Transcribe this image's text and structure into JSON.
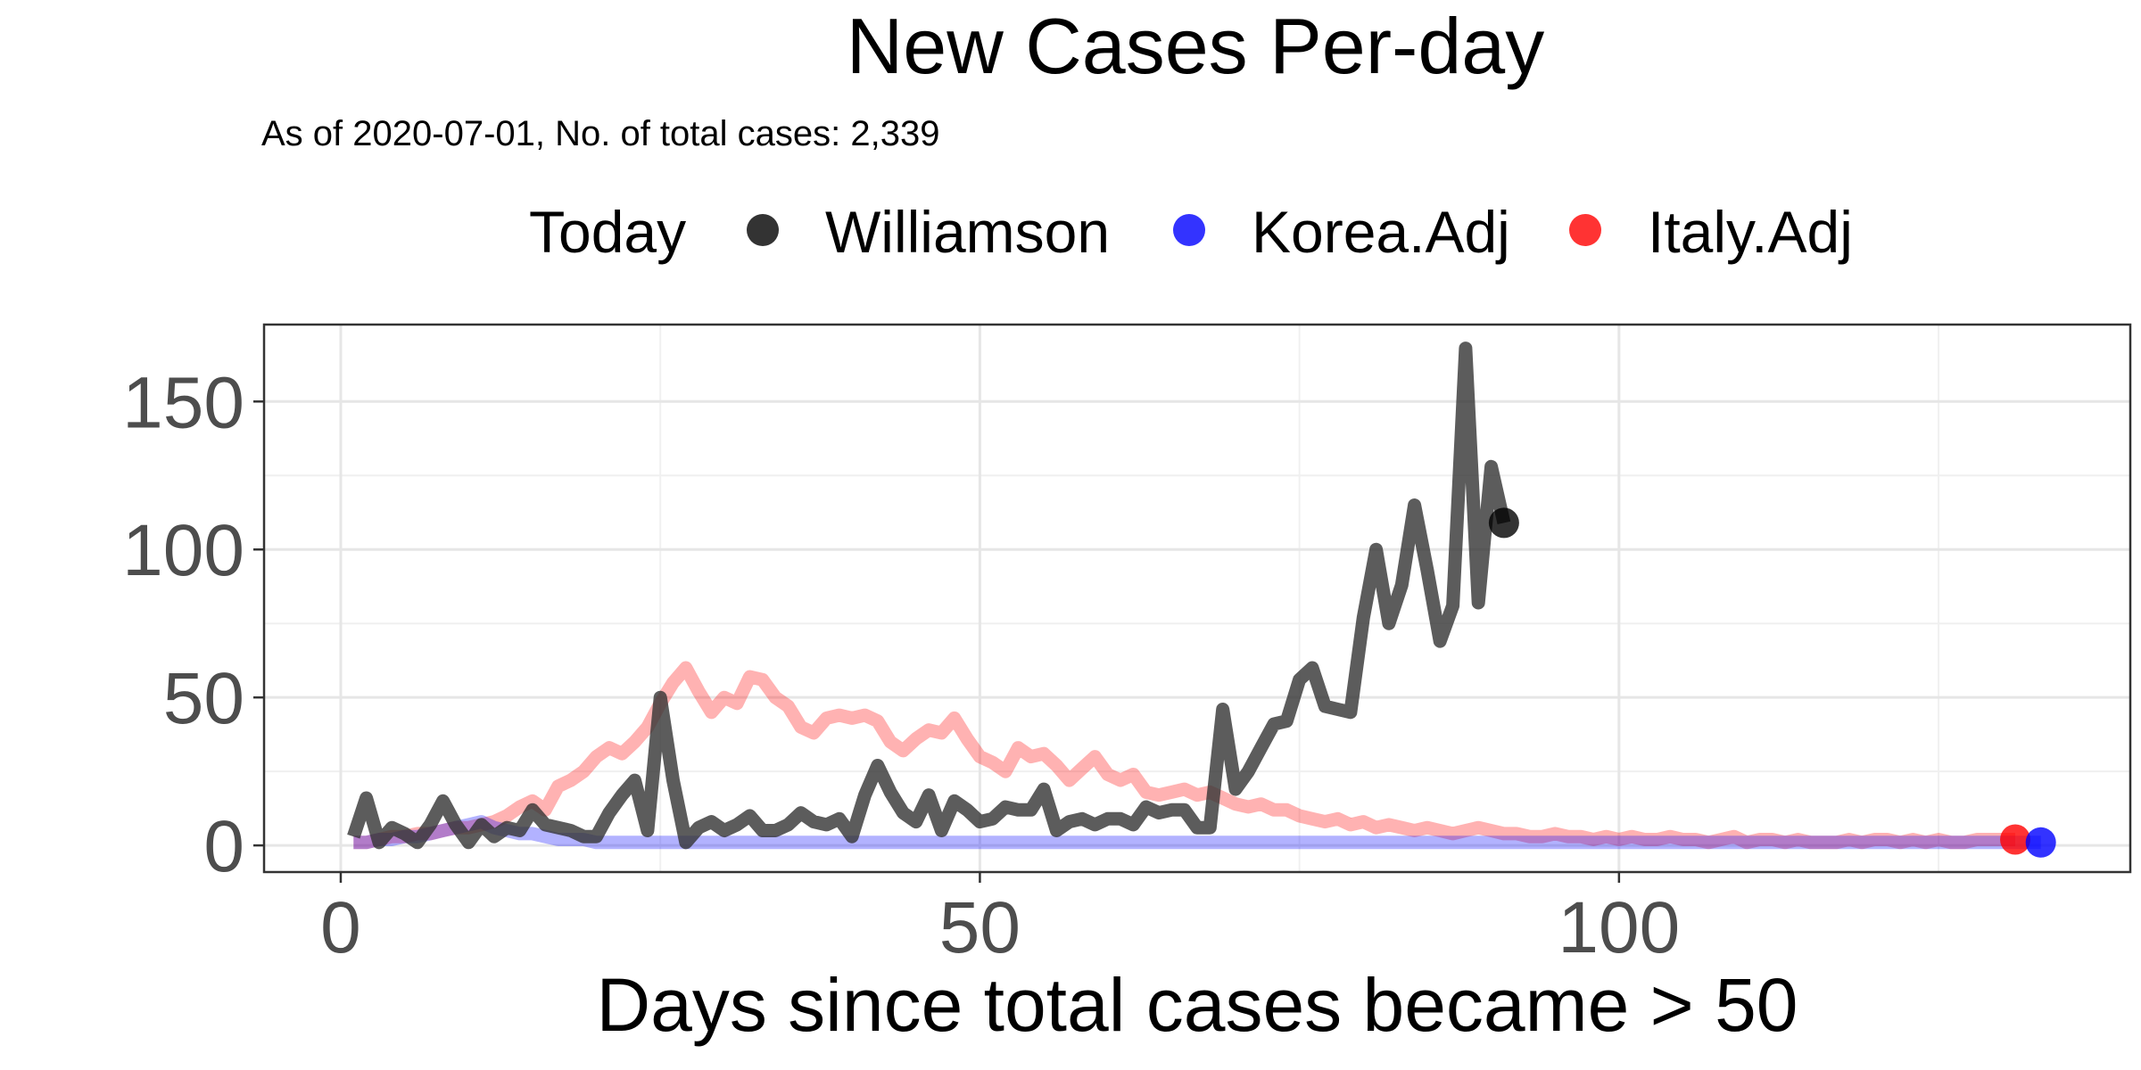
{
  "chart_data": {
    "type": "line",
    "title": "New Cases Per-day",
    "subtitle": "As of 2020-07-01, No. of total cases: 2,339",
    "xlabel": "Days since total cases became > 50",
    "ylabel": "",
    "xlim": [
      -6,
      140
    ],
    "ylim": [
      -9,
      176
    ],
    "x_ticks": [
      0,
      50,
      100
    ],
    "y_ticks": [
      0,
      50,
      100,
      150
    ],
    "grid": true,
    "legend": {
      "placement": "top",
      "title": "Today",
      "entries": [
        {
          "name": "Williamson",
          "color": "#000000"
        },
        {
          "name": "Korea.Adj",
          "color": "#0000ff"
        },
        {
          "name": "Italy.Adj",
          "color": "#ff0000"
        }
      ]
    },
    "series": [
      {
        "name": "Williamson",
        "color": "#333333",
        "today": [
          91,
          109
        ],
        "x": [
          1,
          2,
          3,
          4,
          5,
          6,
          7,
          8,
          9,
          10,
          11,
          12,
          13,
          14,
          15,
          16,
          17,
          18,
          19,
          20,
          21,
          22,
          23,
          24,
          25,
          26,
          27,
          28,
          29,
          30,
          31,
          32,
          33,
          34,
          35,
          36,
          37,
          38,
          39,
          40,
          41,
          42,
          43,
          44,
          45,
          46,
          47,
          48,
          49,
          50,
          51,
          52,
          53,
          54,
          55,
          56,
          57,
          58,
          59,
          60,
          61,
          62,
          63,
          64,
          65,
          66,
          67,
          68,
          69,
          70,
          71,
          72,
          73,
          74,
          75,
          76,
          77,
          78,
          79,
          80,
          81,
          82,
          83,
          84,
          85,
          86,
          87,
          88,
          89,
          90,
          91
        ],
        "values": [
          3,
          16,
          1,
          6,
          4,
          1,
          7,
          15,
          7,
          1,
          7,
          3,
          6,
          5,
          12,
          7,
          6,
          5,
          3,
          3,
          11,
          17,
          22,
          5,
          50,
          22,
          1,
          6,
          8,
          5,
          7,
          10,
          5,
          5,
          7,
          11,
          8,
          7,
          9,
          3,
          17,
          27,
          18,
          11,
          8,
          17,
          5,
          15,
          12,
          8,
          9,
          13,
          12,
          12,
          19,
          5,
          8,
          9,
          7,
          9,
          9,
          7,
          13,
          11,
          12,
          12,
          6,
          6,
          46,
          19,
          25,
          33,
          41,
          42,
          56,
          60,
          47,
          46,
          45,
          77,
          100,
          75,
          88,
          115,
          93,
          69,
          81,
          168,
          82,
          128,
          109
        ]
      },
      {
        "name": "Korea.Adj",
        "color": "#0000ff",
        "today": [
          133,
          1
        ],
        "x": [
          1,
          2,
          3,
          4,
          5,
          6,
          7,
          8,
          9,
          10,
          11,
          12,
          13,
          14,
          15,
          16,
          17,
          18,
          19,
          20,
          21,
          22,
          23,
          24,
          25,
          26,
          27,
          28,
          29,
          30,
          31,
          32,
          33,
          34,
          35,
          36,
          37,
          38,
          39,
          40,
          41,
          42,
          43,
          44,
          45,
          46,
          47,
          48,
          49,
          50,
          51,
          52,
          53,
          54,
          55,
          56,
          57,
          58,
          59,
          60,
          61,
          62,
          63,
          64,
          65,
          66,
          67,
          68,
          69,
          70,
          71,
          72,
          73,
          74,
          75,
          76,
          77,
          78,
          79,
          80,
          81,
          82,
          83,
          84,
          85,
          86,
          87,
          88,
          89,
          90,
          91,
          92,
          93,
          94,
          95,
          96,
          97,
          98,
          99,
          100,
          101,
          102,
          103,
          104,
          105,
          106,
          107,
          108,
          109,
          110,
          111,
          112,
          113,
          114,
          115,
          116,
          117,
          118,
          119,
          120,
          121,
          122,
          123,
          124,
          125,
          126,
          127,
          128,
          129,
          130,
          131,
          132,
          133
        ],
        "values": [
          1,
          1,
          2,
          2,
          3,
          3,
          4,
          5,
          6,
          7,
          8,
          6,
          5,
          4,
          4,
          3,
          2,
          2,
          2,
          1,
          1,
          1,
          1,
          1,
          1,
          1,
          1,
          1,
          1,
          1,
          1,
          1,
          1,
          1,
          1,
          1,
          1,
          1,
          1,
          1,
          1,
          1,
          1,
          1,
          1,
          1,
          1,
          1,
          1,
          1,
          1,
          1,
          1,
          1,
          1,
          1,
          1,
          1,
          1,
          1,
          1,
          1,
          1,
          1,
          1,
          1,
          1,
          1,
          1,
          1,
          1,
          1,
          1,
          1,
          1,
          1,
          1,
          1,
          1,
          1,
          1,
          1,
          1,
          1,
          1,
          1,
          1,
          1,
          1,
          1,
          1,
          1,
          1,
          1,
          1,
          1,
          1,
          1,
          1,
          1,
          1,
          1,
          1,
          1,
          1,
          1,
          1,
          1,
          1,
          1,
          1,
          1,
          1,
          1,
          1,
          1,
          1,
          1,
          1,
          1,
          1,
          1,
          1,
          1,
          1,
          1,
          1,
          1,
          1,
          1,
          1,
          1,
          1
        ]
      },
      {
        "name": "Italy.Adj",
        "color": "#ff0000",
        "today": [
          131,
          2
        ],
        "x": [
          1,
          2,
          3,
          4,
          5,
          6,
          7,
          8,
          9,
          10,
          11,
          12,
          13,
          14,
          15,
          16,
          17,
          18,
          19,
          20,
          21,
          22,
          23,
          24,
          25,
          26,
          27,
          28,
          29,
          30,
          31,
          32,
          33,
          34,
          35,
          36,
          37,
          38,
          39,
          40,
          41,
          42,
          43,
          44,
          45,
          46,
          47,
          48,
          49,
          50,
          51,
          52,
          53,
          54,
          55,
          56,
          57,
          58,
          59,
          60,
          61,
          62,
          63,
          64,
          65,
          66,
          67,
          68,
          69,
          70,
          71,
          72,
          73,
          74,
          75,
          76,
          77,
          78,
          79,
          80,
          81,
          82,
          83,
          84,
          85,
          86,
          87,
          88,
          89,
          90,
          91,
          92,
          93,
          94,
          95,
          96,
          97,
          98,
          99,
          100,
          101,
          102,
          103,
          104,
          105,
          106,
          107,
          108,
          109,
          110,
          111,
          112,
          113,
          114,
          115,
          116,
          117,
          118,
          119,
          120,
          121,
          122,
          123,
          124,
          125,
          126,
          127,
          128,
          129,
          130,
          131
        ],
        "values": [
          1,
          1,
          2,
          3,
          3,
          4,
          4,
          5,
          6,
          6,
          7,
          8,
          10,
          13,
          15,
          12,
          20,
          22,
          25,
          30,
          33,
          31,
          35,
          40,
          48,
          55,
          60,
          52,
          45,
          50,
          48,
          57,
          56,
          50,
          47,
          40,
          38,
          43,
          44,
          43,
          44,
          42,
          35,
          32,
          36,
          39,
          38,
          43,
          36,
          30,
          28,
          25,
          33,
          30,
          31,
          27,
          22,
          26,
          30,
          24,
          22,
          24,
          18,
          17,
          18,
          19,
          17,
          18,
          16,
          14,
          13,
          14,
          12,
          12,
          10,
          9,
          8,
          9,
          7,
          8,
          6,
          7,
          6,
          5,
          6,
          5,
          4,
          5,
          6,
          5,
          4,
          4,
          3,
          3,
          4,
          3,
          3,
          2,
          3,
          2,
          3,
          2,
          2,
          3,
          2,
          2,
          1,
          2,
          3,
          1,
          2,
          2,
          1,
          2,
          1,
          1,
          1,
          2,
          1,
          2,
          2,
          1,
          2,
          1,
          2,
          1,
          1,
          2,
          2,
          2,
          2
        ]
      }
    ]
  }
}
